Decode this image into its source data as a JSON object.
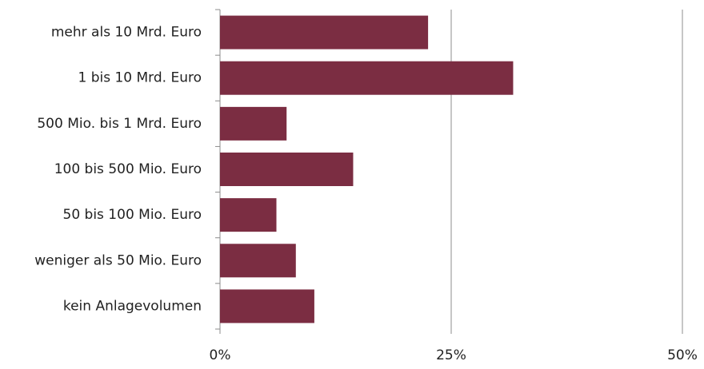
{
  "chart_data": {
    "type": "hbar",
    "categories": [
      "mehr als 10 Mrd. Euro",
      "1 bis 10 Mrd. Euro",
      "500 Mio. bis 1 Mrd. Euro",
      "100 bis 500 Mio. Euro",
      "50 bis 100 Mio. Euro",
      "weniger als 50 Mio. Euro",
      "kein Anlagevolumen"
    ],
    "values": [
      22.5,
      31.7,
      7.2,
      14.4,
      6.1,
      8.2,
      10.2
    ],
    "color": "#7b2d42",
    "xlim": [
      0,
      50
    ],
    "xticks": [
      {
        "value": 0,
        "label": "0%"
      },
      {
        "value": 25,
        "label": "25%"
      },
      {
        "value": 50,
        "label": "50%"
      }
    ],
    "grid": true
  }
}
